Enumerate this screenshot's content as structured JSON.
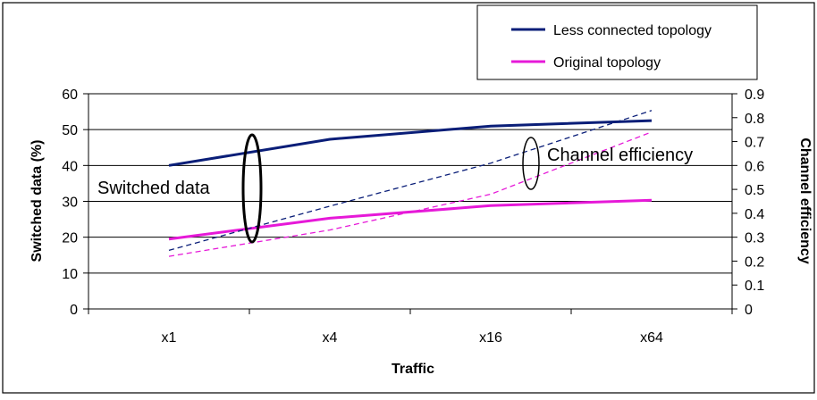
{
  "chart_data": {
    "type": "line",
    "categories": [
      "x1",
      "x4",
      "x16",
      "x64"
    ],
    "xlabel": "Traffic",
    "ylabel": "Switched data (%)",
    "y2label": "Channel efficiency",
    "ylim": [
      0,
      60
    ],
    "yticks": [
      0,
      10,
      20,
      30,
      40,
      50,
      60
    ],
    "y2lim": [
      0,
      0.9
    ],
    "y2ticks": [
      "0",
      "0.1",
      "0.2",
      "0.3",
      "0.4",
      "0.5",
      "0.6",
      "0.7",
      "0.8",
      "0.9"
    ],
    "grid": "horizontal",
    "legend_position": "top-right",
    "series": [
      {
        "name": "Less connected topology",
        "axis": "left",
        "style": "solid",
        "color": "#0a1e78",
        "values": [
          40,
          47.3,
          51,
          52.5
        ]
      },
      {
        "name": "Original topology",
        "axis": "left",
        "style": "solid",
        "color": "#e619d8",
        "values": [
          19.5,
          25.3,
          28.8,
          30.3
        ]
      },
      {
        "axis": "right",
        "style": "dashed",
        "color": "#0a1e78",
        "values": [
          0.245,
          0.43,
          0.61,
          0.83
        ]
      },
      {
        "axis": "right",
        "style": "dashed",
        "color": "#e619d8",
        "values": [
          0.22,
          0.33,
          0.48,
          0.74
        ]
      }
    ],
    "annotations": {
      "switched": "Switched data",
      "efficiency": "Channel efficiency"
    }
  }
}
